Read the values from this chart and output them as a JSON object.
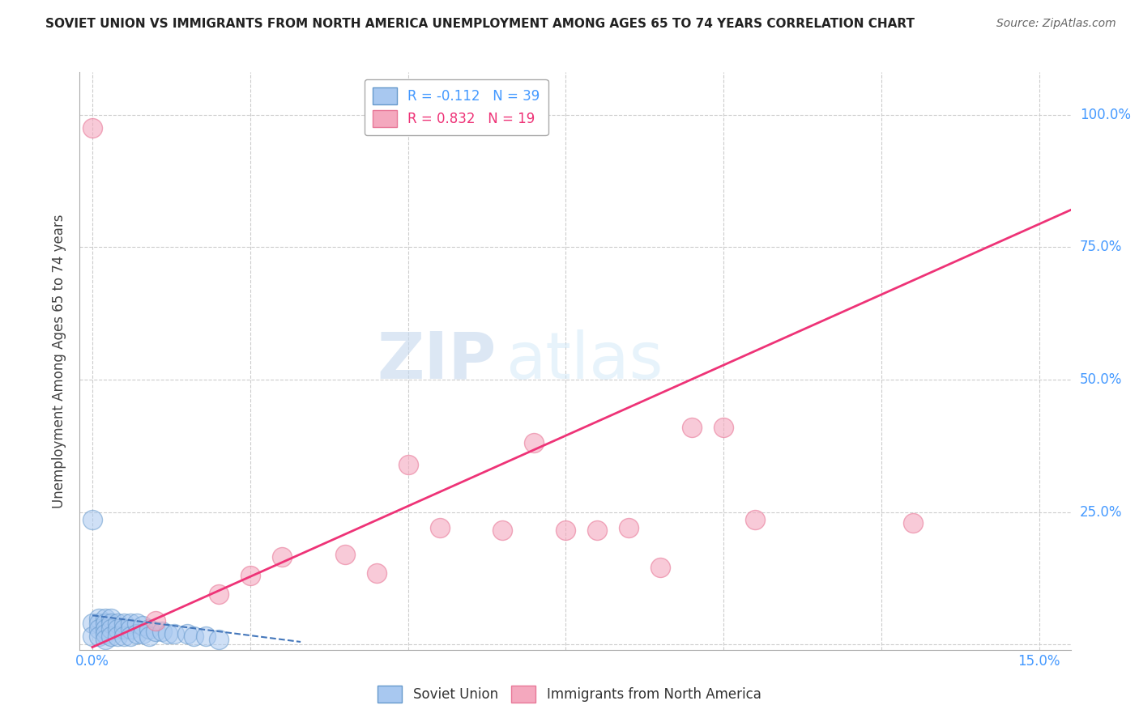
{
  "title": "SOVIET UNION VS IMMIGRANTS FROM NORTH AMERICA UNEMPLOYMENT AMONG AGES 65 TO 74 YEARS CORRELATION CHART",
  "source": "Source: ZipAtlas.com",
  "ylabel": "Unemployment Among Ages 65 to 74 years",
  "xlim": [
    -0.002,
    0.155
  ],
  "ylim": [
    -0.01,
    1.08
  ],
  "xticks": [
    0.0,
    0.025,
    0.05,
    0.075,
    0.1,
    0.125,
    0.15
  ],
  "xticklabels": [
    "0.0%",
    "",
    "",
    "",
    "",
    "",
    "15.0%"
  ],
  "yticks": [
    0.0,
    0.25,
    0.5,
    0.75,
    1.0
  ],
  "yticklabels": [
    "",
    "25.0%",
    "50.0%",
    "75.0%",
    "100.0%"
  ],
  "legend_r1": "R = -0.112",
  "legend_n1": "N = 39",
  "legend_r2": "R = 0.832",
  "legend_n2": "N = 19",
  "blue_color": "#a8c8f0",
  "pink_color": "#f4a8be",
  "blue_fill": "#a8c8f0",
  "pink_fill": "#f4a8be",
  "blue_edge": "#6699cc",
  "pink_edge": "#e87898",
  "blue_line_color": "#4477bb",
  "pink_line_color": "#ee3377",
  "watermark_zip": "ZIP",
  "watermark_atlas": "atlas",
  "blue_dots_x": [
    0.0,
    0.0,
    0.0,
    0.001,
    0.001,
    0.001,
    0.001,
    0.002,
    0.002,
    0.002,
    0.002,
    0.002,
    0.003,
    0.003,
    0.003,
    0.003,
    0.004,
    0.004,
    0.004,
    0.005,
    0.005,
    0.005,
    0.006,
    0.006,
    0.006,
    0.007,
    0.007,
    0.008,
    0.008,
    0.009,
    0.009,
    0.01,
    0.011,
    0.012,
    0.013,
    0.015,
    0.016,
    0.018,
    0.02
  ],
  "blue_dots_y": [
    0.235,
    0.04,
    0.015,
    0.05,
    0.04,
    0.03,
    0.015,
    0.05,
    0.04,
    0.03,
    0.02,
    0.01,
    0.05,
    0.04,
    0.03,
    0.015,
    0.04,
    0.03,
    0.015,
    0.04,
    0.03,
    0.015,
    0.04,
    0.03,
    0.015,
    0.04,
    0.02,
    0.035,
    0.02,
    0.03,
    0.015,
    0.025,
    0.025,
    0.02,
    0.02,
    0.02,
    0.015,
    0.015,
    0.01
  ],
  "pink_dots_x": [
    0.0,
    0.01,
    0.02,
    0.025,
    0.03,
    0.04,
    0.045,
    0.05,
    0.055,
    0.065,
    0.07,
    0.075,
    0.08,
    0.085,
    0.09,
    0.095,
    0.1,
    0.105,
    0.13
  ],
  "pink_dots_y": [
    0.975,
    0.045,
    0.095,
    0.13,
    0.165,
    0.17,
    0.135,
    0.34,
    0.22,
    0.215,
    0.38,
    0.215,
    0.215,
    0.22,
    0.145,
    0.41,
    0.41,
    0.235,
    0.23
  ],
  "pink_line_x0": 0.0,
  "pink_line_y0": -0.005,
  "pink_line_x1": 0.155,
  "pink_line_y1": 0.82,
  "blue_line_x0": 0.0,
  "blue_line_y0": 0.055,
  "blue_line_x1": 0.033,
  "blue_line_y1": 0.005,
  "grid_color": "#cccccc",
  "background_color": "#ffffff",
  "tick_color": "#4499ff",
  "label_color": "#4499ff"
}
